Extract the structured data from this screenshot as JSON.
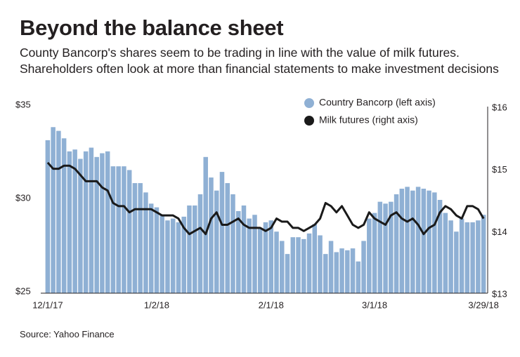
{
  "chart_data": {
    "type": "bar-line",
    "title": "Beyond the balance sheet",
    "subtitle": "County Bancorp's shares seem to be trading in line with the value of milk futures. Shareholders often look at more than financial statements to make investment decisions",
    "source": "Source: Yahoo Finance",
    "categories": [
      "12/1/17",
      null,
      null,
      null,
      null,
      null,
      null,
      null,
      null,
      null,
      null,
      null,
      null,
      null,
      null,
      null,
      null,
      null,
      null,
      null,
      "1/2/18",
      null,
      null,
      null,
      null,
      null,
      null,
      null,
      null,
      null,
      null,
      null,
      null,
      null,
      null,
      null,
      null,
      null,
      null,
      null,
      null,
      "2/1/18",
      null,
      null,
      null,
      null,
      null,
      null,
      null,
      null,
      null,
      null,
      null,
      null,
      null,
      null,
      null,
      null,
      null,
      null,
      "3/1/18",
      null,
      null,
      null,
      null,
      null,
      null,
      null,
      null,
      null,
      null,
      null,
      null,
      null,
      null,
      null,
      null,
      null,
      null,
      null,
      "3/29/18"
    ],
    "series": [
      {
        "name": "Country Bancorp (left axis)",
        "type": "bar",
        "color": "#8fb0d4",
        "axis": "y",
        "values": [
          33.2,
          33.9,
          33.7,
          33.3,
          32.6,
          32.7,
          32.2,
          32.6,
          32.8,
          32.3,
          32.5,
          32.6,
          31.8,
          31.8,
          31.8,
          31.6,
          30.9,
          30.9,
          30.4,
          29.8,
          29.6,
          29.2,
          28.9,
          29.0,
          28.8,
          29.1,
          29.7,
          29.7,
          30.3,
          32.3,
          31.2,
          30.5,
          31.5,
          30.9,
          30.3,
          29.4,
          29.7,
          29.0,
          29.2,
          28.5,
          28.8,
          28.9,
          28.3,
          27.8,
          27.1,
          28.0,
          28.0,
          27.9,
          28.2,
          28.7,
          28.1,
          27.1,
          27.8,
          27.2,
          27.4,
          27.3,
          27.4,
          26.7,
          27.8,
          29.0,
          29.3,
          29.9,
          29.8,
          29.9,
          30.3,
          30.6,
          30.7,
          30.5,
          30.7,
          30.6,
          30.5,
          30.4,
          30.0,
          29.3,
          28.9,
          28.3,
          29.0,
          28.8,
          28.8,
          28.9,
          29.2
        ]
      },
      {
        "name": "Milk futures (right axis)",
        "type": "line",
        "color": "#1a1a1a",
        "axis": "y2",
        "values": [
          15.1,
          15.0,
          15.0,
          15.05,
          15.05,
          15.0,
          14.9,
          14.8,
          14.8,
          14.8,
          14.7,
          14.65,
          14.45,
          14.4,
          14.4,
          14.3,
          14.35,
          14.35,
          14.35,
          14.35,
          14.3,
          14.25,
          14.25,
          14.25,
          14.2,
          14.05,
          13.95,
          14.0,
          14.05,
          13.95,
          14.2,
          14.3,
          14.1,
          14.1,
          14.15,
          14.2,
          14.1,
          14.05,
          14.05,
          14.05,
          14.0,
          14.05,
          14.2,
          14.15,
          14.15,
          14.05,
          14.05,
          14.0,
          14.05,
          14.1,
          14.2,
          14.45,
          14.4,
          14.3,
          14.4,
          14.25,
          14.1,
          14.05,
          14.1,
          14.3,
          14.2,
          14.15,
          14.1,
          14.25,
          14.3,
          14.2,
          14.15,
          14.2,
          14.1,
          13.95,
          14.05,
          14.1,
          14.3,
          14.4,
          14.35,
          14.25,
          14.2,
          14.4,
          14.4,
          14.35,
          14.2
        ]
      }
    ],
    "ylim": [
      25,
      35
    ],
    "yticks": [
      {
        "value": 25,
        "label": "$25"
      },
      {
        "value": 30,
        "label": "$30"
      },
      {
        "value": 35,
        "label": "$35"
      }
    ],
    "y2lim": [
      13,
      16
    ],
    "y2ticks": [
      {
        "value": 13,
        "label": "$13"
      },
      {
        "value": 14,
        "label": "$14"
      },
      {
        "value": 15,
        "label": "$15"
      },
      {
        "value": 16,
        "label": "$16"
      }
    ],
    "grid": false,
    "legend": "top-right"
  }
}
